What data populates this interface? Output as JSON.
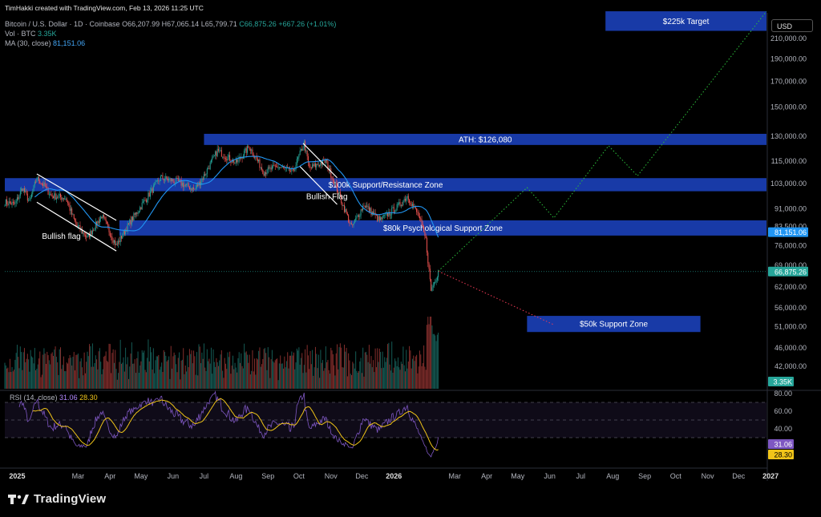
{
  "header": {
    "credit": "TimHakki created with TradingView.com, Feb 13, 2026 11:25 UTC",
    "symbol": "Bitcoin / U.S. Dollar · 1D · Coinbase",
    "open": "O66,207.99",
    "high": "H67,065.14",
    "low": "L65,799.71",
    "close": "C66,875.26",
    "change": "+667.26 (+1.01%)",
    "vol_label": "Vol · BTC",
    "vol_value": "3.35K",
    "ma_label": "MA (30, close)",
    "ma_value": "81,151.06"
  },
  "currency": "USD",
  "rsi": {
    "label": "RSI (14, close)",
    "value": "31.06",
    "ma": "28.30"
  },
  "brand": "TradingView",
  "colors": {
    "background": "#000000",
    "zone": "#1a3fb5",
    "up": "#26a69a",
    "down": "#ef5350",
    "ma": "#2196f3",
    "rsi": "#7e57c2",
    "rsi_ma": "#f0c419"
  },
  "chart_data": {
    "type": "candlestick",
    "x_ticks": [
      "2025",
      "Mar",
      "Apr",
      "May",
      "Jun",
      "Jul",
      "Aug",
      "Sep",
      "Oct",
      "Nov",
      "Dec",
      "2026",
      "Mar",
      "Apr",
      "May",
      "Jun",
      "Jul",
      "Aug",
      "Sep",
      "Oct",
      "Nov",
      "Dec",
      "2027"
    ],
    "y_ticks": [
      "210,000.00",
      "190,000.00",
      "170,000.00",
      "150,000.00",
      "130,000.00",
      "115,000.00",
      "103,000.00",
      "91,000.00",
      "83,500.00",
      "76,000.00",
      "69,000.00",
      "62,000.00",
      "56,000.00",
      "51,000.00",
      "46,000.00",
      "42,000.00"
    ],
    "rsi_ticks": [
      "80.00",
      "60.00",
      "40.00",
      "20.00"
    ],
    "price_labels": [
      {
        "text": "81,151.06",
        "value": 81151.06,
        "color": "#2196f3"
      },
      {
        "text": "66,875.26",
        "value": 66875.26,
        "color": "#26a69a"
      },
      {
        "text": "3.35K",
        "value": "vol",
        "color": "#26a69a"
      }
    ],
    "rsi_labels": [
      {
        "text": "31.06",
        "value": 31.06,
        "color": "#7e57c2"
      },
      {
        "text": "28.30",
        "value": 28.3,
        "color": "#f0c419"
      }
    ],
    "zones": [
      {
        "label": "$225k Target",
        "from": 218000,
        "to": 240000,
        "x_start": "2026-07-25",
        "x_end": "2026-12-28"
      },
      {
        "label": "ATH: $126,080",
        "from": 124500,
        "to": 131500,
        "x_start": "2025-07-01",
        "x_end": "2026-12-28"
      },
      {
        "label": "$100k Support/Resistance Zone",
        "from": 99200,
        "to": 105800,
        "x_start": "2024-12-20",
        "x_end": "2026-12-28"
      },
      {
        "label": "$80k Psychological Support Zone",
        "from": 79800,
        "to": 86000,
        "x_start": "2025-04-10",
        "x_end": "2026-12-28"
      },
      {
        "label": "$50k Support Zone",
        "from": 49700,
        "to": 53800,
        "x_start": "2026-05-10",
        "x_end": "2026-10-25"
      }
    ],
    "annotations": [
      {
        "text": "Bullish flag",
        "date": "2025-01-25",
        "value": 79500
      },
      {
        "text": "Bullish Flag",
        "date": "2025-10-08",
        "value": 96500
      }
    ],
    "last_close": 66875.26,
    "ma_last": 81151.06,
    "rsi_last": 31.06,
    "rsi_ma_last": 28.3,
    "projection_bull": [
      [
        "2026-02-13",
        67000
      ],
      [
        "2026-05-10",
        101000
      ],
      [
        "2026-06-05",
        87000
      ],
      [
        "2026-07-28",
        124000
      ],
      [
        "2026-08-25",
        107000
      ],
      [
        "2026-12-28",
        240000
      ]
    ],
    "projection_bear": [
      [
        "2026-02-13",
        67000
      ],
      [
        "2026-06-05",
        51500
      ]
    ],
    "price_path": [
      [
        "2024-12-20",
        94000
      ],
      [
        "2024-12-30",
        93000
      ],
      [
        "2025-01-06",
        101000
      ],
      [
        "2025-01-13",
        94000
      ],
      [
        "2025-01-20",
        106000
      ],
      [
        "2025-01-27",
        102000
      ],
      [
        "2025-02-03",
        97000
      ],
      [
        "2025-02-17",
        96000
      ],
      [
        "2025-02-27",
        84000
      ],
      [
        "2025-03-10",
        79000
      ],
      [
        "2025-03-24",
        88000
      ],
      [
        "2025-04-07",
        76000
      ],
      [
        "2025-04-20",
        85000
      ],
      [
        "2025-05-05",
        95000
      ],
      [
        "2025-05-20",
        106000
      ],
      [
        "2025-06-05",
        104000
      ],
      [
        "2025-06-22",
        100000
      ],
      [
        "2025-07-01",
        107000
      ],
      [
        "2025-07-14",
        121000
      ],
      [
        "2025-08-01",
        114000
      ],
      [
        "2025-08-14",
        123500
      ],
      [
        "2025-08-28",
        109000
      ],
      [
        "2025-09-10",
        112000
      ],
      [
        "2025-09-25",
        109000
      ],
      [
        "2025-10-06",
        125500
      ],
      [
        "2025-10-11",
        111000
      ],
      [
        "2025-10-27",
        115000
      ],
      [
        "2025-11-04",
        104000
      ],
      [
        "2025-11-21",
        83000
      ],
      [
        "2025-12-03",
        93000
      ],
      [
        "2025-12-18",
        86000
      ],
      [
        "2026-01-05",
        92000
      ],
      [
        "2026-01-14",
        97000
      ],
      [
        "2026-01-25",
        88000
      ],
      [
        "2026-02-01",
        78000
      ],
      [
        "2026-02-06",
        61000
      ],
      [
        "2026-02-13",
        66875
      ]
    ]
  }
}
